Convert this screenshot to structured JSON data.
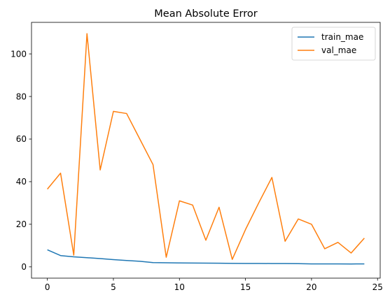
{
  "chart_data": {
    "type": "line",
    "title": "Mean Absolute Error",
    "xlabel": "",
    "ylabel": "",
    "xlim": [
      -1.2,
      25.2
    ],
    "ylim": [
      -5.3,
      114.8
    ],
    "xticks": [
      0,
      5,
      10,
      15,
      20,
      25
    ],
    "yticks": [
      0,
      20,
      40,
      60,
      80,
      100
    ],
    "grid": false,
    "legend": "top-right",
    "x": [
      0,
      1,
      2,
      3,
      4,
      5,
      6,
      7,
      8,
      9,
      10,
      11,
      12,
      13,
      14,
      15,
      16,
      17,
      18,
      19,
      20,
      21,
      22,
      23,
      24
    ],
    "series": [
      {
        "name": "train_mae",
        "color": "#1f77b4",
        "values": [
          8.0,
          5.3,
          4.7,
          4.3,
          3.9,
          3.4,
          3.0,
          2.6,
          2.0,
          1.9,
          1.85,
          1.8,
          1.75,
          1.7,
          1.65,
          1.6,
          1.6,
          1.55,
          1.55,
          1.5,
          1.4,
          1.4,
          1.4,
          1.35,
          1.4
        ]
      },
      {
        "name": "val_mae",
        "color": "#ff7f0e",
        "values": [
          36.5,
          44.0,
          5.5,
          109.5,
          45.5,
          73.0,
          72.0,
          60.0,
          48.0,
          4.5,
          31.0,
          29.0,
          12.5,
          28.0,
          3.5,
          17.5,
          30.0,
          42.0,
          12.0,
          22.5,
          20.0,
          8.5,
          11.5,
          6.5,
          13.5
        ]
      }
    ]
  }
}
